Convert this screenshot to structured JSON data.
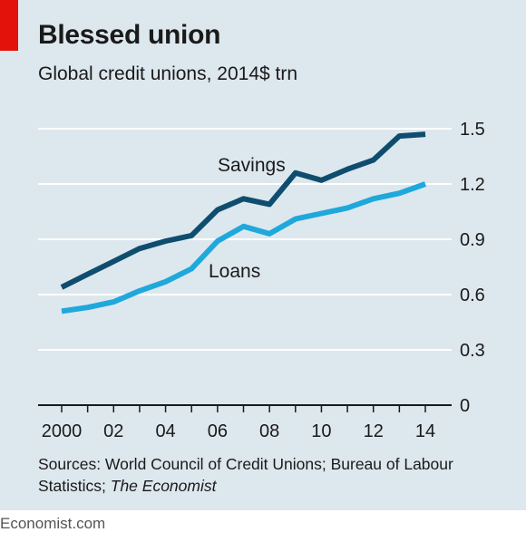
{
  "title": "Blessed union",
  "subtitle": "Global credit unions, 2014$ trn",
  "source": {
    "text": "Sources: World Council of Credit Unions; Bureau of Labour Statistics; ",
    "italic": "The Economist"
  },
  "footer": "Economist.com",
  "colors": {
    "background": "#dde7ee",
    "red_tag": "#e3120b",
    "savings": "#0f4d6e",
    "loans": "#1fa8db",
    "gridline": "#ffffff",
    "axis": "#1a1a1a"
  },
  "chart_data": {
    "type": "line",
    "x": [
      2000,
      2001,
      2002,
      2003,
      2004,
      2005,
      2006,
      2007,
      2008,
      2009,
      2010,
      2011,
      2012,
      2013,
      2014
    ],
    "xlim": [
      2000,
      2014
    ],
    "xtick_values": [
      2000,
      2002,
      2004,
      2006,
      2008,
      2010,
      2012,
      2014
    ],
    "xtick_labels": [
      "2000",
      "02",
      "04",
      "06",
      "08",
      "10",
      "12",
      "14"
    ],
    "ylim": [
      0,
      1.5
    ],
    "ytick_values": [
      0,
      0.3,
      0.6,
      0.9,
      1.2,
      1.5
    ],
    "ytick_labels": [
      "0",
      "0.3",
      "0.6",
      "0.9",
      "1.2",
      "1.5"
    ],
    "y_axis_side": "right",
    "grid": true,
    "series": [
      {
        "name": "Savings",
        "color_key": "savings",
        "values": [
          0.64,
          0.71,
          0.78,
          0.85,
          0.89,
          0.92,
          1.06,
          1.12,
          1.09,
          1.26,
          1.22,
          1.28,
          1.33,
          1.46,
          1.47
        ]
      },
      {
        "name": "Loans",
        "color_key": "loans",
        "values": [
          0.51,
          0.53,
          0.56,
          0.62,
          0.67,
          0.74,
          0.89,
          0.97,
          0.93,
          1.01,
          1.04,
          1.07,
          1.12,
          1.15,
          1.2
        ]
      }
    ]
  }
}
